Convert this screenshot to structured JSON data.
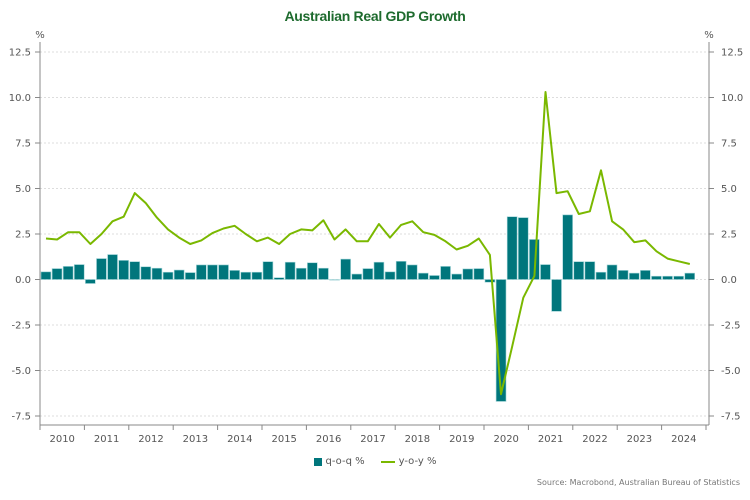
{
  "chart_data": {
    "type": "bar+line",
    "title": "Australian Real GDP Growth",
    "ylabel_left": "%",
    "ylabel_right": "%",
    "ylim": [
      -7.5,
      12.5
    ],
    "yticks": [
      12.5,
      10.0,
      7.5,
      5.0,
      2.5,
      0.0,
      -2.5,
      -5.0,
      -7.5
    ],
    "ytick_labels": [
      "12.5",
      "10.0",
      "7.5",
      "5.0",
      "2.5",
      "0.0",
      "-2.5",
      "-5.0",
      "-7.5"
    ],
    "x_start_quarter": "2010Q1",
    "xtick_labels": [
      "2010",
      "2011",
      "2012",
      "2013",
      "2014",
      "2015",
      "2016",
      "2017",
      "2018",
      "2019",
      "2020",
      "2021",
      "2022",
      "2023",
      "2024"
    ],
    "grid": true,
    "legend_position": "bottom-center",
    "series": [
      {
        "name": "q-o-q %",
        "kind": "bar",
        "color": "#00767c",
        "values": [
          0.42,
          0.6,
          0.72,
          0.82,
          -0.22,
          1.15,
          1.37,
          1.05,
          0.98,
          0.7,
          0.62,
          0.4,
          0.52,
          0.38,
          0.8,
          0.8,
          0.8,
          0.5,
          0.4,
          0.4,
          0.98,
          0.1,
          0.95,
          0.62,
          0.92,
          0.62,
          0.0,
          1.12,
          0.3,
          0.6,
          0.95,
          0.42,
          1.0,
          0.8,
          0.35,
          0.22,
          0.72,
          0.3,
          0.58,
          0.6,
          -0.15,
          -6.7,
          3.45,
          3.4,
          2.2,
          0.82,
          -1.75,
          3.55,
          0.98,
          0.98,
          0.4,
          0.8,
          0.5,
          0.35,
          0.5,
          0.18,
          0.18,
          0.18,
          0.35
        ]
      },
      {
        "name": "y-o-y %",
        "kind": "line",
        "color": "#7ab800",
        "values": [
          2.25,
          2.2,
          2.6,
          2.6,
          1.95,
          2.5,
          3.2,
          3.45,
          4.75,
          4.2,
          3.4,
          2.75,
          2.3,
          1.95,
          2.15,
          2.55,
          2.8,
          2.95,
          2.5,
          2.1,
          2.3,
          1.95,
          2.5,
          2.75,
          2.7,
          3.25,
          2.2,
          2.75,
          2.1,
          2.1,
          3.05,
          2.3,
          3.0,
          3.2,
          2.6,
          2.45,
          2.1,
          1.65,
          1.85,
          2.25,
          1.35,
          -6.3,
          -3.7,
          -1.0,
          0.2,
          10.3,
          4.75,
          4.85,
          3.6,
          3.75,
          6.0,
          3.2,
          2.75,
          2.05,
          2.15,
          1.55,
          1.15,
          1.0,
          0.85
        ]
      }
    ]
  },
  "legend": {
    "qoq_label": "q-o-q %",
    "yoy_label": "y-o-y %",
    "qoq_color": "#00767c",
    "yoy_color": "#7ab800"
  },
  "source": "Source: Macrobond, Australian Bureau of Statistics"
}
